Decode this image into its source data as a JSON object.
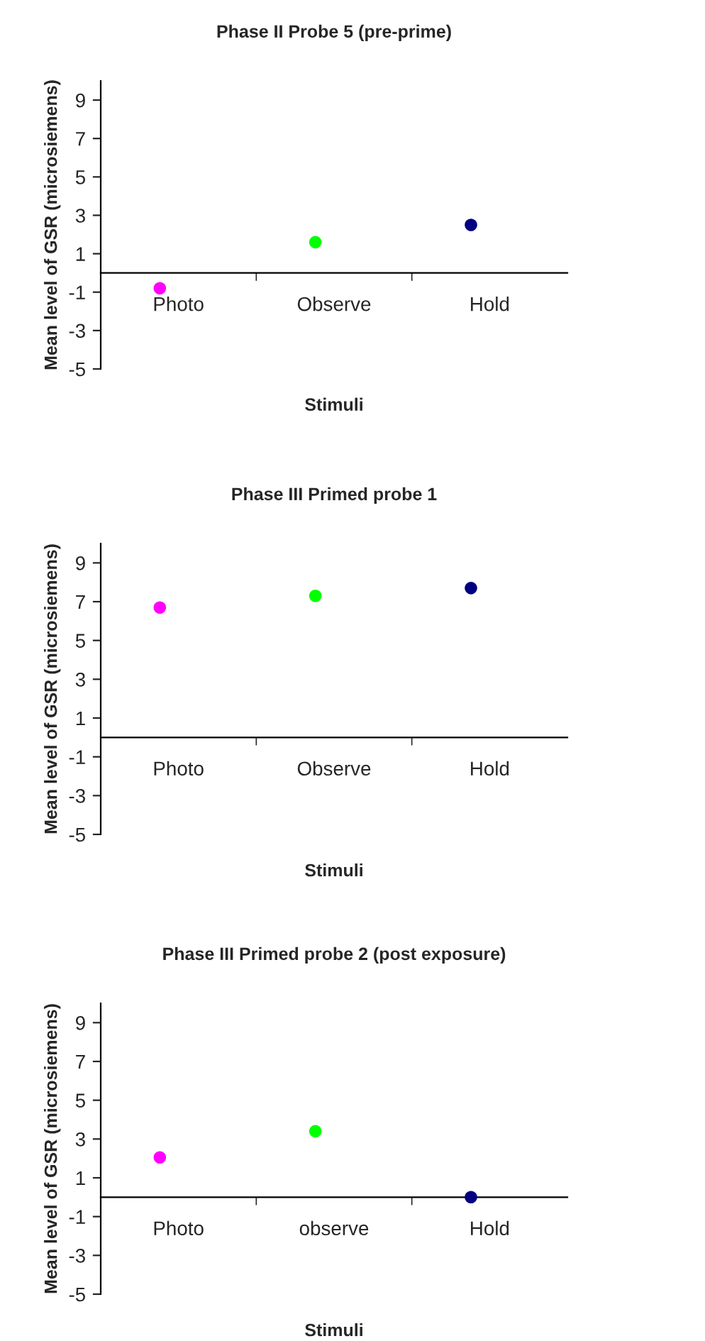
{
  "chart_data": [
    {
      "type": "scatter",
      "title": "Phase II Probe 5 (pre-prime)",
      "xlabel": "Stimuli",
      "ylabel": "Mean level of GSR (microsiemens)",
      "categories": [
        "Photo",
        "Observe",
        "Hold"
      ],
      "values": [
        -0.8,
        1.6,
        2.5
      ],
      "colors": [
        "#ff00ff",
        "#00ff00",
        "#000080"
      ],
      "ylim": [
        -5,
        10
      ],
      "yticks": [
        -5,
        -3,
        -1,
        1,
        3,
        5,
        7,
        9
      ],
      "marker": "circle"
    },
    {
      "type": "scatter",
      "title": "Phase III Primed probe 1",
      "xlabel": "Stimuli",
      "ylabel": "Mean level of GSR (microsiemens)",
      "categories": [
        "Photo",
        "Observe",
        "Hold"
      ],
      "values": [
        6.7,
        7.3,
        7.7
      ],
      "colors": [
        "#ff00ff",
        "#00ff00",
        "#000080"
      ],
      "ylim": [
        -5,
        10
      ],
      "yticks": [
        -5,
        -3,
        -1,
        1,
        3,
        5,
        7,
        9
      ],
      "marker": "circle"
    },
    {
      "type": "scatter",
      "title": "Phase III Primed probe 2 (post exposure)",
      "xlabel": "Stimuli",
      "ylabel": "Mean level of GSR (microsiemens)",
      "categories": [
        "Photo",
        "observe",
        "Hold"
      ],
      "values": [
        2.05,
        3.4,
        0
      ],
      "colors": [
        "#ff00ff",
        "#00ff00",
        "#000080"
      ],
      "ylim": [
        -5,
        10
      ],
      "yticks": [
        -5,
        -3,
        -1,
        1,
        3,
        5,
        7,
        9
      ],
      "marker": "circle"
    }
  ]
}
